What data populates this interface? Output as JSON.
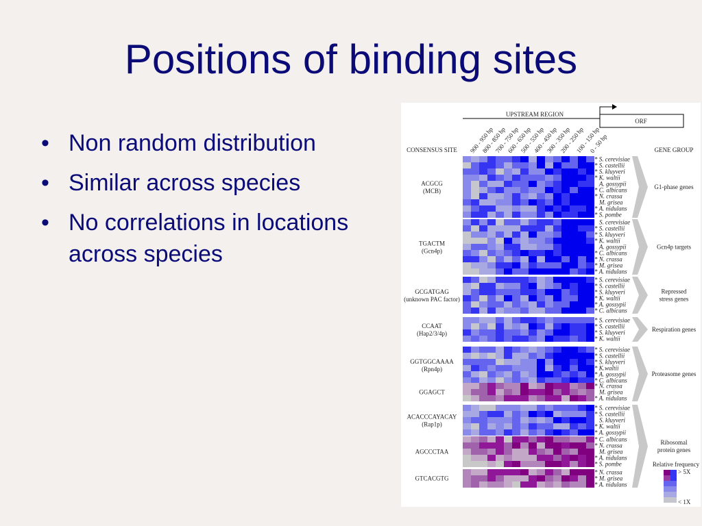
{
  "title": "Positions of binding sites",
  "bullets": [
    "Non random distribution",
    "Similar across species",
    "No correlations in locations across species"
  ],
  "figure": {
    "upstream_label": "UPSTREAM REGION",
    "orf_label": "ORF",
    "position_labels": [
      "900 - 950 bp",
      "800 - 850 bp",
      "700 - 750 bp",
      "600 - 650 bp",
      "500 - 550 bp",
      "400 - 450 bp",
      "300 - 350 bp",
      "200 - 250 bp",
      "100 - 150 bp",
      "0 - 50 bp"
    ],
    "consensus_header": "CONSENSUS SITE",
    "gene_group_header": "GENE GROUP",
    "groups": [
      {
        "site": "ACGCG",
        "factor": "(MCB)",
        "species": [
          "* S. cerevisiae",
          "* S. castellii",
          "* S. kluyveri",
          "* K. waltii",
          "A. gossypii",
          "* C. albicans",
          "* N. crassa",
          "M. grisea",
          "* A. nidulans",
          "* S. pombe"
        ],
        "gene_group": [
          "G1-phase genes"
        ]
      },
      {
        "site": "TGACTM",
        "factor": "(Gcn4p)",
        "species": [
          "S. cerevisiae",
          "* S. castellii",
          "* S. kluyveri",
          "* K. waltii",
          "A. gossypii",
          "* C. albicans",
          "* N. crassa",
          "* M. grisea",
          "* A. nidulans"
        ],
        "gene_group": [
          "Gcn4p targets"
        ]
      },
      {
        "site": "GCGATGAG",
        "factor": "(unknown PAC factor)",
        "species": [
          "* S. cerevisiae",
          "* S. castellii",
          "* S. kluyveri",
          "* K. waltii",
          "* A. gossypii",
          "* C. albicans"
        ],
        "gene_group": [
          "Repressed",
          "stress genes"
        ]
      },
      {
        "site": "CCAAT",
        "factor": "(Hap2/3/4p)",
        "species": [
          "* S. cerevisiae",
          "* S. castellii",
          "* S. kluyveri",
          "* K. waltii"
        ],
        "gene_group": [
          "Respiration genes"
        ]
      },
      {
        "site": "GGTGGCAAAA",
        "factor": "(Rpn4p)",
        "species": [
          "* S. cerevisiae",
          "* S. castellii",
          "* S. kluyveri",
          "* K.waltii",
          "* A. gossypii",
          "* C. albicans"
        ],
        "gene_group": [
          "Proteasome genes"
        ]
      },
      {
        "site": "GGAGCT",
        "species": [
          "* N. crassa",
          "M. grisea",
          "* A. nidulans"
        ]
      },
      {
        "site": "ACACCCAYACAY",
        "factor": "(Rap1p)",
        "species": [
          "* S. cerevisiae",
          "* S. castellii",
          "S. kluyveri",
          "* K. waltii",
          "* A. gossypii"
        ],
        "gene_group": [
          "Ribosomal",
          "protein genes"
        ]
      },
      {
        "site": "AGCCCTAA",
        "species": [
          "* C. albicans",
          "* N. crassa",
          "M. grisea",
          "* A. nidulans",
          "* S. pombe"
        ]
      },
      {
        "site": "GTCACGTG",
        "species": [
          "* N. crassa",
          "* M. grisea",
          "* A. nidulans"
        ]
      }
    ],
    "legend": {
      "title": "Relative frequency",
      "high": "> 5X",
      "low": "< 1X"
    }
  }
}
